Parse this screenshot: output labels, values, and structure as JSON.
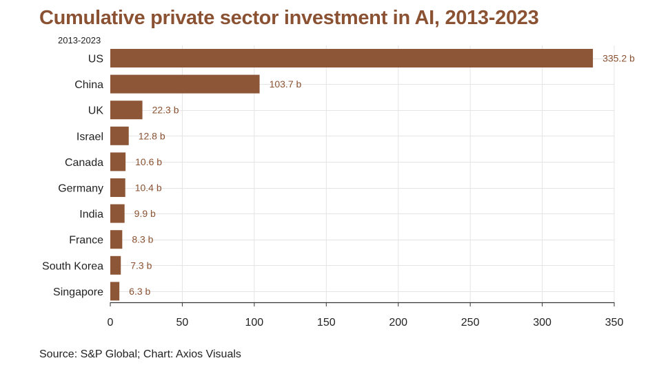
{
  "title": "Cumulative private sector investment in AI, 2013-2023",
  "subtitle": "2013-2023",
  "source": "Source:  S&P Global; Chart: Axios Visuals",
  "colors": {
    "bar": "#8d5637",
    "label": "#8a5232",
    "grid": "#e4e4e4",
    "axis": "#333333",
    "text": "#222222"
  },
  "chart_data": {
    "type": "bar",
    "orientation": "horizontal",
    "categories": [
      "US",
      "China",
      "UK",
      "Israel",
      "Canada",
      "Germany",
      "India",
      "France",
      "South Korea",
      "Singapore"
    ],
    "values": [
      335.2,
      103.7,
      22.3,
      12.8,
      10.6,
      10.4,
      9.9,
      8.3,
      7.3,
      6.3
    ],
    "value_labels": [
      "335.2 b",
      "103.7 b",
      "22.3 b",
      "12.8 b",
      "10.6 b",
      "10.4 b",
      "9.9 b",
      "8.3 b",
      "7.3 b",
      "6.3 b"
    ],
    "xlim": [
      0,
      350
    ],
    "xticks": [
      0,
      50,
      100,
      150,
      200,
      250,
      300,
      350
    ],
    "grid": true
  }
}
